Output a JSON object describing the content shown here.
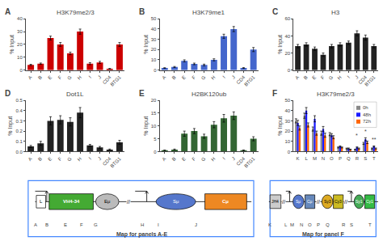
{
  "chart_data": [
    {
      "type": "bar",
      "title": "H3K79me2/3",
      "categories": [
        "A",
        "B",
        "E",
        "F",
        "G",
        "H",
        "I",
        "J",
        "CD4",
        "BTG1"
      ],
      "values": [
        4,
        5,
        25,
        20,
        13,
        30,
        5,
        6,
        1,
        20
      ],
      "errors": [
        0.5,
        0.5,
        1.5,
        1.5,
        1.0,
        2.0,
        0.8,
        0.8,
        0.3,
        1.5
      ],
      "color": "#cc0000",
      "ylabel": "% Input",
      "ylim": [
        0,
        40
      ],
      "yticks": [
        0,
        10,
        20,
        30,
        40
      ],
      "grid": false,
      "annotations": [
        {
          "text": "A"
        }
      ]
    },
    {
      "type": "bar",
      "title": "H3K79me1",
      "categories": [
        "A",
        "B",
        "E",
        "F",
        "G",
        "H",
        "I",
        "J",
        "CD4",
        "BTG1"
      ],
      "values": [
        2,
        3,
        9,
        6,
        5,
        10,
        33,
        40,
        2,
        20
      ],
      "errors": [
        0.3,
        0.5,
        1.0,
        0.8,
        0.8,
        1.0,
        2.0,
        2.5,
        0.4,
        2.0
      ],
      "color": "#4466cc",
      "ylabel": "% Input",
      "ylim": [
        0,
        50
      ],
      "yticks": [
        0,
        10,
        20,
        30,
        40,
        50
      ],
      "grid": false,
      "annotations": [
        {
          "text": "B"
        }
      ]
    },
    {
      "type": "bar",
      "title": "H3",
      "categories": [
        "A",
        "B",
        "E",
        "F",
        "G",
        "H",
        "I",
        "J",
        "CD4",
        "BTG1"
      ],
      "values": [
        28,
        30,
        25,
        18,
        28,
        30,
        32,
        43,
        38,
        28
      ],
      "errors": [
        2.0,
        2.0,
        2.0,
        2.0,
        2.0,
        2.0,
        2.0,
        3.0,
        3.0,
        2.0
      ],
      "color": "#222222",
      "ylabel": "% Input",
      "ylim": [
        0,
        60
      ],
      "yticks": [
        0,
        20,
        40,
        60
      ],
      "grid": false,
      "annotations": [
        {
          "text": "C"
        }
      ]
    },
    {
      "type": "bar",
      "title": "Dot1L",
      "categories": [
        "A",
        "B",
        "E",
        "F",
        "G",
        "H",
        "I",
        "J",
        "CD4",
        "BTG1"
      ],
      "values": [
        0.05,
        0.08,
        0.3,
        0.31,
        0.29,
        0.38,
        0.06,
        0.04,
        0.02,
        0.09
      ],
      "errors": [
        0.01,
        0.02,
        0.04,
        0.04,
        0.04,
        0.05,
        0.01,
        0.01,
        0.005,
        0.02
      ],
      "color": "#222222",
      "ylabel": "% Input",
      "ylim": [
        0,
        0.5
      ],
      "yticks": [
        {
          "value": 0,
          "label": "0.0"
        },
        0.1,
        0.2,
        0.3,
        0.4,
        0.5
      ],
      "grid": false,
      "annotations": [
        {
          "text": "D"
        }
      ]
    },
    {
      "type": "bar",
      "title": "H2BK120ub",
      "categories": [
        "A",
        "B",
        "E",
        "F",
        "G",
        "H",
        "I",
        "J",
        "CD4",
        "BTG1"
      ],
      "values": [
        0.5,
        0.8,
        7.0,
        8.0,
        6.0,
        10.5,
        13.0,
        14.0,
        0.5,
        5.0
      ],
      "errors": [
        0.1,
        0.2,
        1.0,
        1.0,
        0.8,
        1.2,
        1.5,
        1.5,
        0.1,
        0.8
      ],
      "color": "#336633",
      "ylabel": "% Input",
      "ylim": [
        0,
        20
      ],
      "yticks": [
        0,
        5,
        10,
        15,
        20
      ],
      "grid": false,
      "annotations": [
        {
          "text": "E"
        }
      ]
    },
    {
      "type": "bar",
      "title": "H3K79me2/3",
      "categories": [
        "K",
        "L",
        "M",
        "N",
        "O",
        "P",
        "Q",
        "R",
        "S",
        "T"
      ],
      "series": [
        {
          "name": "0h",
          "color": "#888888",
          "values": [
            30,
            35,
            22,
            18,
            17,
            4,
            3,
            2,
            8,
            3
          ],
          "errors": [
            2.0,
            2.5,
            2.0,
            2.0,
            1.5,
            0.5,
            0.4,
            0.4,
            1.0,
            0.5
          ]
        },
        {
          "name": "48h",
          "color": "#1a1aff",
          "values": [
            28,
            40,
            32,
            22,
            16,
            5,
            3,
            4,
            12,
            5
          ],
          "errors": [
            2.5,
            3.0,
            3.0,
            2.5,
            1.5,
            0.6,
            0.5,
            0.6,
            1.5,
            0.6
          ]
        },
        {
          "name": "72h",
          "color": "#ff6600",
          "values": [
            23,
            26,
            18,
            16,
            14,
            4,
            2,
            3,
            9,
            3
          ],
          "errors": [
            2.0,
            2.0,
            2.0,
            2.0,
            1.5,
            0.5,
            0.4,
            0.5,
            1.2,
            0.5
          ]
        }
      ],
      "ylabel": "% Input",
      "ylim": [
        0,
        50
      ],
      "yticks": [
        0,
        10,
        20,
        30,
        40,
        50
      ],
      "grid": false,
      "legend": "upper right",
      "annotations": [
        {
          "text": "F"
        },
        {
          "text": "*",
          "x": "R",
          "y": 12
        },
        {
          "text": "*",
          "x": "S",
          "y": 16
        },
        {
          "text": "**",
          "x": "T",
          "y": 8
        }
      ]
    },
    {
      "type": "diagram",
      "title": "Map for panels A-E",
      "color": "#4488ff",
      "annotations": [
        {
          "text": "L",
          "marker": "box",
          "color": "#ffffff"
        },
        {
          "text": "VH4-34",
          "marker": "box",
          "color": "#44aa33"
        },
        {
          "text": "Eμ",
          "marker": "ellipse",
          "color": "#bbbbbb"
        },
        {
          "text": "//"
        },
        {
          "text": "Sμ",
          "marker": "ellipse",
          "color": "#5577cc"
        },
        {
          "text": "Cμ",
          "marker": "box",
          "color": "#ee8822"
        }
      ],
      "categories": [
        "A",
        "B",
        "E",
        "F",
        "G",
        "H",
        "I",
        "J"
      ]
    },
    {
      "type": "diagram",
      "title": "Map for panel F",
      "color": "#4488ff",
      "annotations": [
        {
          "text": "JH4",
          "marker": "box",
          "color": "#cccccc"
        },
        {
          "text": "//"
        },
        {
          "text": "Sμ",
          "marker": "ellipse",
          "color": "#5577cc"
        },
        {
          "text": "Cμ",
          "marker": "box",
          "color": "#6688bb"
        },
        {
          "text": "//"
        },
        {
          "text": "Sy3",
          "marker": "ellipse",
          "color": "#ddaa22"
        },
        {
          "text": "Cy3",
          "marker": "box",
          "color": "#ccbb22"
        },
        {
          "text": "//"
        },
        {
          "text": "Sy1",
          "marker": "ellipse",
          "color": "#44aa55"
        },
        {
          "text": "Cy1",
          "marker": "box",
          "color": "#33bb44"
        }
      ],
      "categories": [
        "K",
        "L",
        "M",
        "N",
        "O",
        "P",
        "Q",
        "R",
        "S",
        "T"
      ]
    }
  ]
}
